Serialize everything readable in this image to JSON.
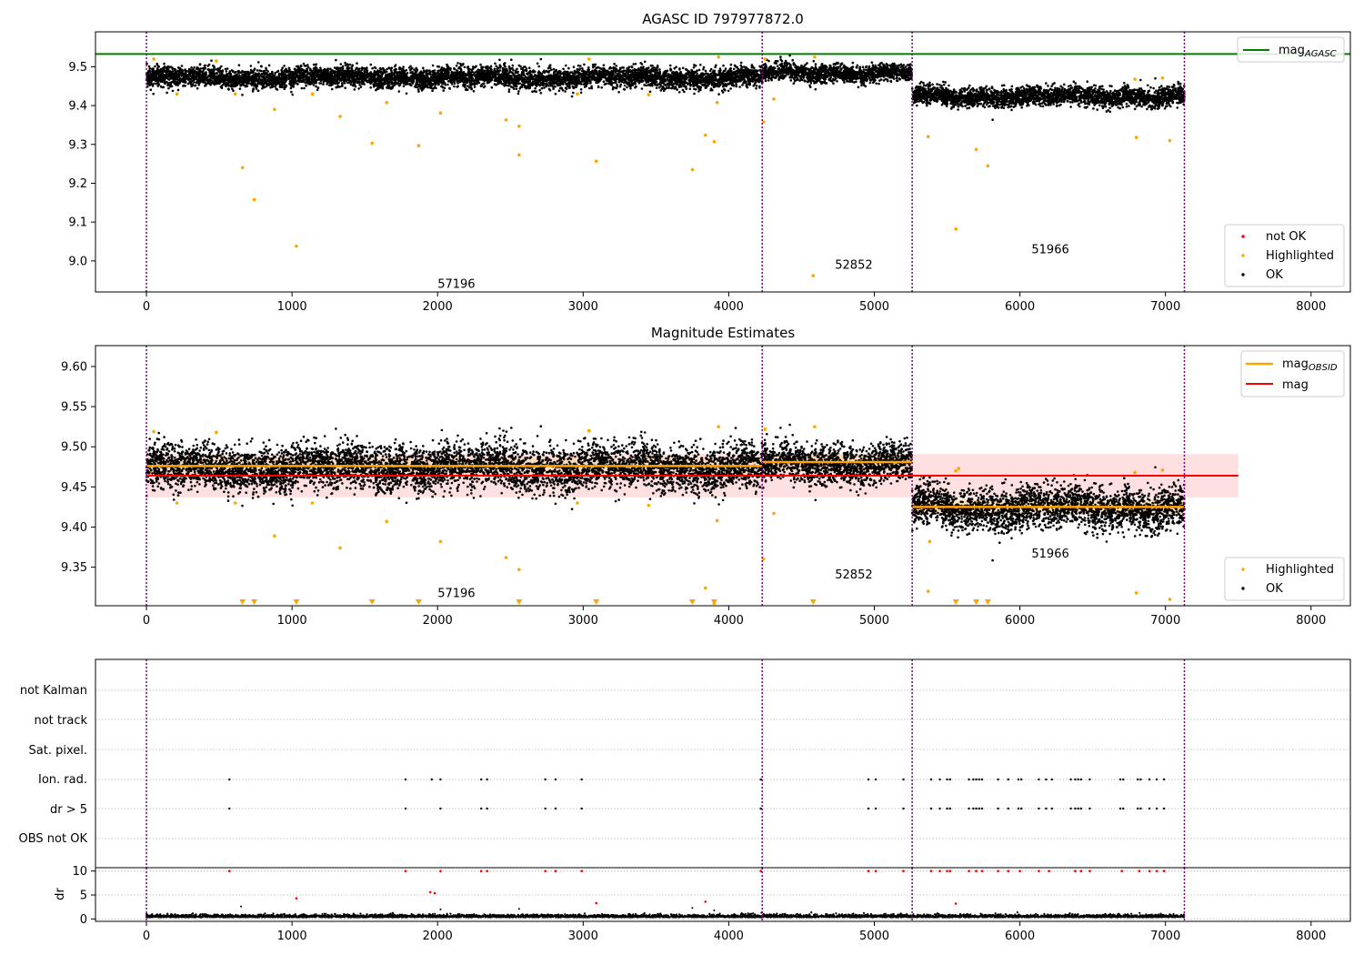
{
  "figure": {
    "colors": {
      "ok": "#000000",
      "not_ok": "#ff0000",
      "highlighted": "#ffa500",
      "agasc_line": "#008000",
      "mag_line": "#ff0000",
      "mag_obsid": "#ffa500",
      "band": "#ffcccc",
      "obs_divider": "#800080",
      "grid": "#b0b0b0"
    }
  },
  "chart_data": [
    {
      "type": "scatter",
      "title": "AGASC ID 797977872.0",
      "xlim": [
        -350,
        8270
      ],
      "ylim": [
        8.92,
        9.59
      ],
      "xticks": [
        0,
        1000,
        2000,
        3000,
        4000,
        5000,
        6000,
        7000,
        8000
      ],
      "yticks": [
        9.0,
        9.1,
        9.2,
        9.3,
        9.4,
        9.5
      ],
      "tick_format_decimals": 1,
      "obs_boundaries": [
        0,
        4230,
        5260,
        7130
      ],
      "agasc_mag": 9.533,
      "segments": [
        {
          "x0": 0,
          "x1": 4230,
          "mean": 9.472,
          "spread": 0.013
        },
        {
          "x0": 4230,
          "x1": 5260,
          "mean": 9.484,
          "spread": 0.011
        },
        {
          "x0": 5260,
          "x1": 7130,
          "mean": 9.424,
          "spread": 0.012
        }
      ],
      "highlighted": [
        {
          "x": 50,
          "y": 9.52
        },
        {
          "x": 210,
          "y": 9.43
        },
        {
          "x": 480,
          "y": 9.515
        },
        {
          "x": 610,
          "y": 9.43
        },
        {
          "x": 660,
          "y": 9.24
        },
        {
          "x": 740,
          "y": 9.158
        },
        {
          "x": 880,
          "y": 9.39
        },
        {
          "x": 1030,
          "y": 9.038
        },
        {
          "x": 1140,
          "y": 9.43
        },
        {
          "x": 1330,
          "y": 9.372
        },
        {
          "x": 1550,
          "y": 9.303
        },
        {
          "x": 1650,
          "y": 9.408
        },
        {
          "x": 1870,
          "y": 9.297
        },
        {
          "x": 2020,
          "y": 9.381
        },
        {
          "x": 2470,
          "y": 9.363
        },
        {
          "x": 2560,
          "y": 9.347
        },
        {
          "x": 2560,
          "y": 9.273
        },
        {
          "x": 2960,
          "y": 9.43
        },
        {
          "x": 3040,
          "y": 9.52
        },
        {
          "x": 3090,
          "y": 9.257
        },
        {
          "x": 3450,
          "y": 9.428
        },
        {
          "x": 3750,
          "y": 9.235
        },
        {
          "x": 3840,
          "y": 9.324
        },
        {
          "x": 3900,
          "y": 9.307
        },
        {
          "x": 3920,
          "y": 9.408
        },
        {
          "x": 3930,
          "y": 9.525
        },
        {
          "x": 4240,
          "y": 9.358
        },
        {
          "x": 4250,
          "y": 9.52
        },
        {
          "x": 4310,
          "y": 9.417
        },
        {
          "x": 4580,
          "y": 8.962
        },
        {
          "x": 4590,
          "y": 9.525
        },
        {
          "x": 5370,
          "y": 9.32
        },
        {
          "x": 5560,
          "y": 9.082
        },
        {
          "x": 5700,
          "y": 9.287
        },
        {
          "x": 5780,
          "y": 9.245
        },
        {
          "x": 6790,
          "y": 9.468
        },
        {
          "x": 6800,
          "y": 9.318
        },
        {
          "x": 6980,
          "y": 9.471
        },
        {
          "x": 7030,
          "y": 9.31
        }
      ],
      "annotations": [
        {
          "text": "57196",
          "x": 2000,
          "y": 8.93
        },
        {
          "text": "52852",
          "x": 4730,
          "y": 8.98
        },
        {
          "text": "51966",
          "x": 6080,
          "y": 9.02
        }
      ],
      "legend_top": {
        "label": "mag",
        "sub": "AGASC",
        "placement": "top-right"
      },
      "legend_bottom": {
        "placement": "bottom-right",
        "items": [
          {
            "label": "not OK",
            "color": "#ff0000"
          },
          {
            "label": "Highlighted",
            "color": "#ffa500"
          },
          {
            "label": "OK",
            "color": "#000000"
          }
        ]
      }
    },
    {
      "type": "scatter",
      "title": "Magnitude Estimates",
      "xlim": [
        -350,
        8270
      ],
      "ylim": [
        9.302,
        9.626
      ],
      "xticks": [
        0,
        1000,
        2000,
        3000,
        4000,
        5000,
        6000,
        7000,
        8000
      ],
      "yticks": [
        9.35,
        9.4,
        9.45,
        9.5,
        9.55,
        9.6
      ],
      "tick_format_decimals": 2,
      "obs_boundaries": [
        0,
        4230,
        5260,
        7130
      ],
      "mag": 9.464,
      "mag_band": [
        9.437,
        9.491
      ],
      "mag_xrange": [
        0,
        7500
      ],
      "obsid_mags": [
        {
          "x0": 0,
          "x1": 4230,
          "mag": 9.476,
          "band": [
            9.466,
            9.486
          ]
        },
        {
          "x0": 4230,
          "x1": 5260,
          "mag": 9.481,
          "band": [
            9.471,
            9.491
          ]
        },
        {
          "x0": 5260,
          "x1": 7130,
          "mag": 9.425,
          "band": [
            9.415,
            9.435
          ]
        }
      ],
      "segments": [
        {
          "x0": 0,
          "x1": 4230,
          "mean": 9.474,
          "spread": 0.014
        },
        {
          "x0": 4230,
          "x1": 5260,
          "mean": 9.479,
          "spread": 0.012
        },
        {
          "x0": 5260,
          "x1": 7130,
          "mean": 9.424,
          "spread": 0.013
        }
      ],
      "highlighted": [
        {
          "x": 50,
          "y": 9.519
        },
        {
          "x": 210,
          "y": 9.43
        },
        {
          "x": 480,
          "y": 9.518
        },
        {
          "x": 610,
          "y": 9.43
        },
        {
          "x": 880,
          "y": 9.389
        },
        {
          "x": 1140,
          "y": 9.43
        },
        {
          "x": 1330,
          "y": 9.374
        },
        {
          "x": 1650,
          "y": 9.407
        },
        {
          "x": 2020,
          "y": 9.382
        },
        {
          "x": 2470,
          "y": 9.362
        },
        {
          "x": 2560,
          "y": 9.347
        },
        {
          "x": 2960,
          "y": 9.43
        },
        {
          "x": 3040,
          "y": 9.52
        },
        {
          "x": 3450,
          "y": 9.427
        },
        {
          "x": 3840,
          "y": 9.324
        },
        {
          "x": 3900,
          "y": 9.305
        },
        {
          "x": 3920,
          "y": 9.408
        },
        {
          "x": 3930,
          "y": 9.525
        },
        {
          "x": 4240,
          "y": 9.36
        },
        {
          "x": 4250,
          "y": 9.522
        },
        {
          "x": 4310,
          "y": 9.417
        },
        {
          "x": 4590,
          "y": 9.525
        },
        {
          "x": 5370,
          "y": 9.32
        },
        {
          "x": 5380,
          "y": 9.382
        },
        {
          "x": 5560,
          "y": 9.47
        },
        {
          "x": 5580,
          "y": 9.473
        },
        {
          "x": 6790,
          "y": 9.468
        },
        {
          "x": 6800,
          "y": 9.318
        },
        {
          "x": 6980,
          "y": 9.471
        },
        {
          "x": 7030,
          "y": 9.31
        }
      ],
      "below_markers": [
        660,
        740,
        1030,
        1550,
        1870,
        2560,
        3090,
        3750,
        3900,
        4580,
        5560,
        5700,
        5780
      ],
      "annotations": [
        {
          "text": "57196",
          "x": 2000,
          "y": 9.313
        },
        {
          "text": "52852",
          "x": 4730,
          "y": 9.336
        },
        {
          "text": "51966",
          "x": 6080,
          "y": 9.362
        }
      ],
      "legend_top": {
        "placement": "top-right",
        "items": [
          {
            "label": "mag",
            "sub": "OBSID",
            "color": "#ffa500"
          },
          {
            "label": "mag",
            "sub": "",
            "color": "#ff0000"
          }
        ]
      },
      "legend_bottom": {
        "placement": "bottom-right",
        "items": [
          {
            "label": "Highlighted",
            "color": "#ffa500"
          },
          {
            "label": "OK",
            "color": "#000000"
          }
        ]
      }
    },
    {
      "type": "scatter",
      "title": "",
      "xlim": [
        -350,
        8270
      ],
      "categories": [
        "OBS not OK",
        "dr > 5",
        "Ion. rad.",
        "Sat. pixel.",
        "not track",
        "not Kalman"
      ],
      "flag_points": [
        570,
        1780,
        1960,
        2020,
        2300,
        2340,
        2740,
        2810,
        2990,
        4220,
        4960,
        5010,
        5200,
        5390,
        5450,
        5500,
        5520,
        5650,
        5680,
        5700,
        5720,
        5740,
        5850,
        5920,
        5990,
        6010,
        6130,
        6180,
        6220,
        6350,
        6380,
        6400,
        6420,
        6480,
        6690,
        6710,
        6810,
        6830,
        6890,
        6940,
        6990
      ],
      "ion_only": [
        1960
      ]
    },
    {
      "type": "scatter",
      "title": "",
      "xlim": [
        -350,
        8270
      ],
      "ylim": [
        -0.5,
        10.7
      ],
      "xticks": [
        0,
        1000,
        2000,
        3000,
        4000,
        5000,
        6000,
        7000,
        8000
      ],
      "yticks": [
        0,
        5,
        10
      ],
      "ylabel": "dr",
      "obs_boundaries": [
        0,
        4230,
        5260,
        7130
      ],
      "not_ok": [
        {
          "x": 570,
          "y": 10
        },
        {
          "x": 1030,
          "y": 4.3
        },
        {
          "x": 1780,
          "y": 10
        },
        {
          "x": 1950,
          "y": 5.6
        },
        {
          "x": 1980,
          "y": 5.4
        },
        {
          "x": 2020,
          "y": 10
        },
        {
          "x": 2300,
          "y": 10
        },
        {
          "x": 2340,
          "y": 10
        },
        {
          "x": 2740,
          "y": 10
        },
        {
          "x": 2810,
          "y": 10
        },
        {
          "x": 2990,
          "y": 10
        },
        {
          "x": 3090,
          "y": 3.3
        },
        {
          "x": 3840,
          "y": 3.6
        },
        {
          "x": 4220,
          "y": 10
        },
        {
          "x": 4960,
          "y": 10
        },
        {
          "x": 5010,
          "y": 10
        },
        {
          "x": 5200,
          "y": 10
        },
        {
          "x": 5390,
          "y": 10
        },
        {
          "x": 5450,
          "y": 10
        },
        {
          "x": 5500,
          "y": 10
        },
        {
          "x": 5520,
          "y": 10
        },
        {
          "x": 5560,
          "y": 3.2
        },
        {
          "x": 5650,
          "y": 10
        },
        {
          "x": 5700,
          "y": 10
        },
        {
          "x": 5740,
          "y": 10
        },
        {
          "x": 5850,
          "y": 10
        },
        {
          "x": 5920,
          "y": 10
        },
        {
          "x": 6000,
          "y": 10
        },
        {
          "x": 6130,
          "y": 10
        },
        {
          "x": 6200,
          "y": 10
        },
        {
          "x": 6380,
          "y": 10
        },
        {
          "x": 6420,
          "y": 10
        },
        {
          "x": 6480,
          "y": 10
        },
        {
          "x": 6700,
          "y": 10
        },
        {
          "x": 6820,
          "y": 10
        },
        {
          "x": 6890,
          "y": 10
        },
        {
          "x": 6940,
          "y": 10
        },
        {
          "x": 6990,
          "y": 10
        }
      ],
      "ok_extra": [
        {
          "x": 650,
          "y": 2.6
        },
        {
          "x": 2020,
          "y": 2.0
        },
        {
          "x": 2560,
          "y": 2.1
        },
        {
          "x": 3750,
          "y": 2.3
        },
        {
          "x": 3900,
          "y": 1.8
        }
      ],
      "baseline": {
        "x0": 0,
        "x1": 7130,
        "mean": 0.55,
        "spread": 0.3
      }
    }
  ]
}
